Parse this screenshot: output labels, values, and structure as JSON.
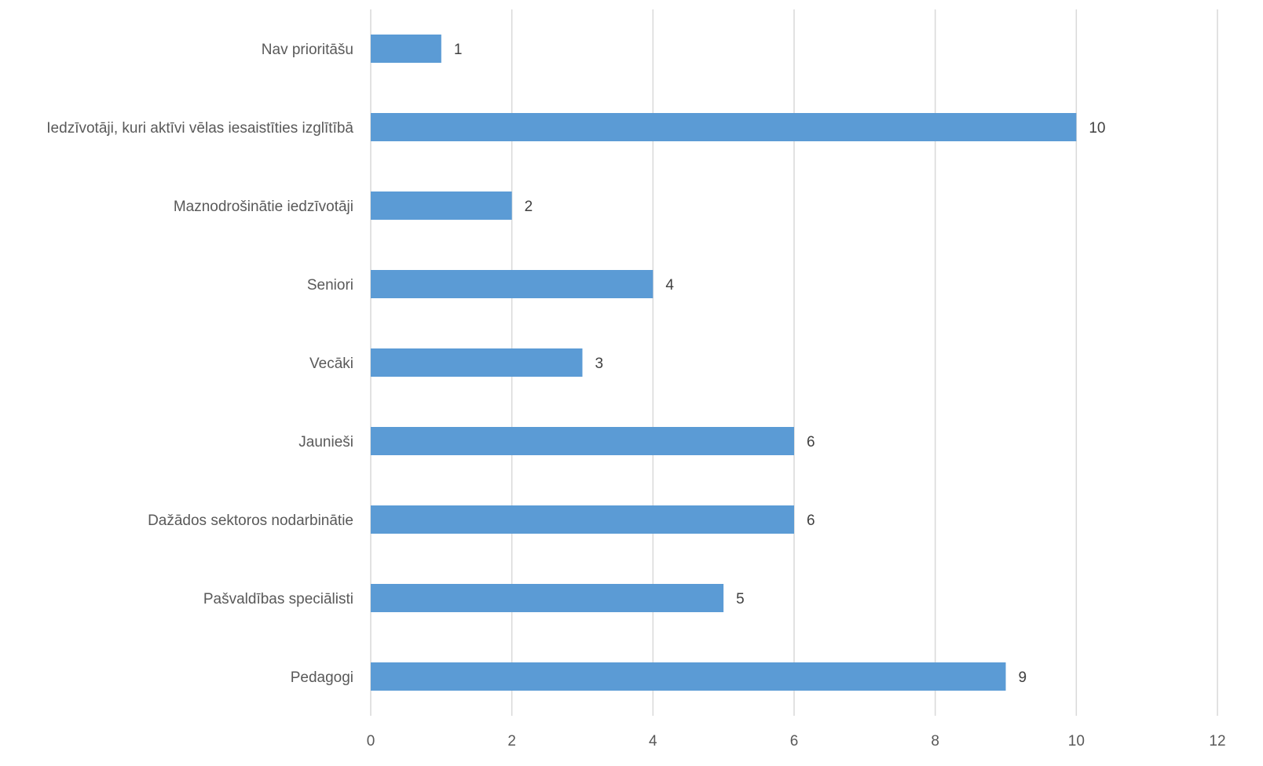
{
  "chart_data": {
    "type": "bar",
    "orientation": "horizontal",
    "title": "",
    "xlabel": "",
    "ylabel": "",
    "categories": [
      "Nav prioritāšu",
      "Iedzīvotāji, kuri aktīvi vēlas iesaistīties izglītībā",
      "Maznodrošinātie iedzīvotāji",
      "Seniori",
      "Vecāki",
      "Jaunieši",
      "Dažādos sektoros nodarbinātie",
      "Pašvaldības speciālisti",
      "Pedagogi"
    ],
    "values": [
      1,
      10,
      2,
      4,
      3,
      6,
      6,
      5,
      9
    ],
    "data_labels": [
      "1",
      "10",
      "2",
      "4",
      "3",
      "6",
      "6",
      "5",
      "9"
    ],
    "xlim": [
      0,
      12
    ],
    "x_ticks": [
      "0",
      "2",
      "4",
      "6",
      "8",
      "10",
      "12"
    ],
    "grid": true,
    "legend": "none",
    "bar_color": "#5b9bd5",
    "grid_color": "#d9d9d9",
    "text_color": "#595959"
  }
}
